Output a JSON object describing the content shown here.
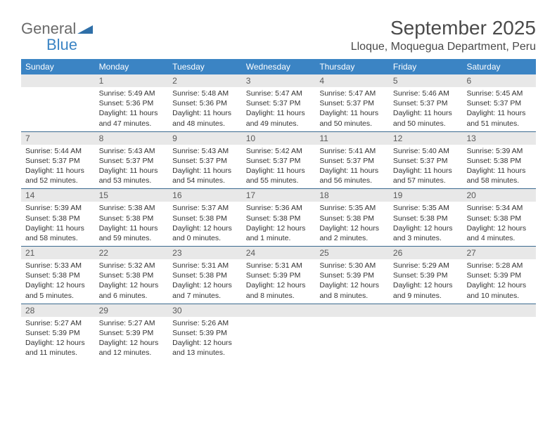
{
  "brand": {
    "text_general": "General",
    "text_blue": "Blue",
    "general_color": "#6a6a6a",
    "blue_color": "#3b84c4",
    "shape_color": "#2f6fa8"
  },
  "title": {
    "month": "September 2025",
    "location": "Lloque, Moquegua Department, Peru",
    "title_fontsize": 28,
    "location_fontsize": 16,
    "title_color": "#4a4a4a"
  },
  "theme": {
    "header_bg": "#3b84c4",
    "header_text": "#ffffff",
    "daynum_bg": "#e8e8e8",
    "daynum_color": "#5a5a5a",
    "body_text": "#333333",
    "week_border": "#3b6a8f",
    "page_bg": "#ffffff"
  },
  "day_headers": [
    "Sunday",
    "Monday",
    "Tuesday",
    "Wednesday",
    "Thursday",
    "Friday",
    "Saturday"
  ],
  "weeks": [
    [
      {
        "day": "",
        "lines": []
      },
      {
        "day": "1",
        "lines": [
          "Sunrise: 5:49 AM",
          "Sunset: 5:36 PM",
          "Daylight: 11 hours and 47 minutes."
        ]
      },
      {
        "day": "2",
        "lines": [
          "Sunrise: 5:48 AM",
          "Sunset: 5:36 PM",
          "Daylight: 11 hours and 48 minutes."
        ]
      },
      {
        "day": "3",
        "lines": [
          "Sunrise: 5:47 AM",
          "Sunset: 5:37 PM",
          "Daylight: 11 hours and 49 minutes."
        ]
      },
      {
        "day": "4",
        "lines": [
          "Sunrise: 5:47 AM",
          "Sunset: 5:37 PM",
          "Daylight: 11 hours and 50 minutes."
        ]
      },
      {
        "day": "5",
        "lines": [
          "Sunrise: 5:46 AM",
          "Sunset: 5:37 PM",
          "Daylight: 11 hours and 50 minutes."
        ]
      },
      {
        "day": "6",
        "lines": [
          "Sunrise: 5:45 AM",
          "Sunset: 5:37 PM",
          "Daylight: 11 hours and 51 minutes."
        ]
      }
    ],
    [
      {
        "day": "7",
        "lines": [
          "Sunrise: 5:44 AM",
          "Sunset: 5:37 PM",
          "Daylight: 11 hours and 52 minutes."
        ]
      },
      {
        "day": "8",
        "lines": [
          "Sunrise: 5:43 AM",
          "Sunset: 5:37 PM",
          "Daylight: 11 hours and 53 minutes."
        ]
      },
      {
        "day": "9",
        "lines": [
          "Sunrise: 5:43 AM",
          "Sunset: 5:37 PM",
          "Daylight: 11 hours and 54 minutes."
        ]
      },
      {
        "day": "10",
        "lines": [
          "Sunrise: 5:42 AM",
          "Sunset: 5:37 PM",
          "Daylight: 11 hours and 55 minutes."
        ]
      },
      {
        "day": "11",
        "lines": [
          "Sunrise: 5:41 AM",
          "Sunset: 5:37 PM",
          "Daylight: 11 hours and 56 minutes."
        ]
      },
      {
        "day": "12",
        "lines": [
          "Sunrise: 5:40 AM",
          "Sunset: 5:37 PM",
          "Daylight: 11 hours and 57 minutes."
        ]
      },
      {
        "day": "13",
        "lines": [
          "Sunrise: 5:39 AM",
          "Sunset: 5:38 PM",
          "Daylight: 11 hours and 58 minutes."
        ]
      }
    ],
    [
      {
        "day": "14",
        "lines": [
          "Sunrise: 5:39 AM",
          "Sunset: 5:38 PM",
          "Daylight: 11 hours and 58 minutes."
        ]
      },
      {
        "day": "15",
        "lines": [
          "Sunrise: 5:38 AM",
          "Sunset: 5:38 PM",
          "Daylight: 11 hours and 59 minutes."
        ]
      },
      {
        "day": "16",
        "lines": [
          "Sunrise: 5:37 AM",
          "Sunset: 5:38 PM",
          "Daylight: 12 hours and 0 minutes."
        ]
      },
      {
        "day": "17",
        "lines": [
          "Sunrise: 5:36 AM",
          "Sunset: 5:38 PM",
          "Daylight: 12 hours and 1 minute."
        ]
      },
      {
        "day": "18",
        "lines": [
          "Sunrise: 5:35 AM",
          "Sunset: 5:38 PM",
          "Daylight: 12 hours and 2 minutes."
        ]
      },
      {
        "day": "19",
        "lines": [
          "Sunrise: 5:35 AM",
          "Sunset: 5:38 PM",
          "Daylight: 12 hours and 3 minutes."
        ]
      },
      {
        "day": "20",
        "lines": [
          "Sunrise: 5:34 AM",
          "Sunset: 5:38 PM",
          "Daylight: 12 hours and 4 minutes."
        ]
      }
    ],
    [
      {
        "day": "21",
        "lines": [
          "Sunrise: 5:33 AM",
          "Sunset: 5:38 PM",
          "Daylight: 12 hours and 5 minutes."
        ]
      },
      {
        "day": "22",
        "lines": [
          "Sunrise: 5:32 AM",
          "Sunset: 5:38 PM",
          "Daylight: 12 hours and 6 minutes."
        ]
      },
      {
        "day": "23",
        "lines": [
          "Sunrise: 5:31 AM",
          "Sunset: 5:38 PM",
          "Daylight: 12 hours and 7 minutes."
        ]
      },
      {
        "day": "24",
        "lines": [
          "Sunrise: 5:31 AM",
          "Sunset: 5:39 PM",
          "Daylight: 12 hours and 8 minutes."
        ]
      },
      {
        "day": "25",
        "lines": [
          "Sunrise: 5:30 AM",
          "Sunset: 5:39 PM",
          "Daylight: 12 hours and 8 minutes."
        ]
      },
      {
        "day": "26",
        "lines": [
          "Sunrise: 5:29 AM",
          "Sunset: 5:39 PM",
          "Daylight: 12 hours and 9 minutes."
        ]
      },
      {
        "day": "27",
        "lines": [
          "Sunrise: 5:28 AM",
          "Sunset: 5:39 PM",
          "Daylight: 12 hours and 10 minutes."
        ]
      }
    ],
    [
      {
        "day": "28",
        "lines": [
          "Sunrise: 5:27 AM",
          "Sunset: 5:39 PM",
          "Daylight: 12 hours and 11 minutes."
        ]
      },
      {
        "day": "29",
        "lines": [
          "Sunrise: 5:27 AM",
          "Sunset: 5:39 PM",
          "Daylight: 12 hours and 12 minutes."
        ]
      },
      {
        "day": "30",
        "lines": [
          "Sunrise: 5:26 AM",
          "Sunset: 5:39 PM",
          "Daylight: 12 hours and 13 minutes."
        ]
      },
      {
        "day": "",
        "lines": []
      },
      {
        "day": "",
        "lines": []
      },
      {
        "day": "",
        "lines": []
      },
      {
        "day": "",
        "lines": []
      }
    ]
  ]
}
